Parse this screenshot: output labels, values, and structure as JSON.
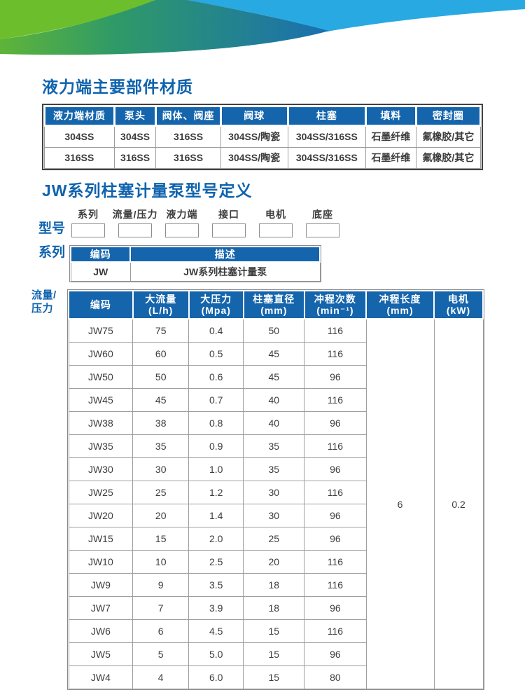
{
  "banner": {
    "green": "#6cbe2d",
    "gradient_start": "#5fb438",
    "gradient_mid": "#2f9a67",
    "gradient_end": "#1a6fb0",
    "light_blue": "#29a9e1"
  },
  "colors": {
    "accent_blue": "#1565ad",
    "title_blue": "#0f63ae",
    "body_text": "#3c3c3c",
    "grid_border": "#9e9e9e"
  },
  "section1": {
    "title": "液力端主要部件材质"
  },
  "materials_table": {
    "headers": [
      "液力端材质",
      "泵头",
      "阀体、阀座",
      "阀球",
      "柱塞",
      "填料",
      "密封圈"
    ],
    "rows": [
      [
        "304SS",
        "304SS",
        "316SS",
        "304SS/陶瓷",
        "304SS/316SS",
        "石墨纤维",
        "氟橡胶/其它"
      ],
      [
        "316SS",
        "316SS",
        "316SS",
        "304SS/陶瓷",
        "304SS/316SS",
        "石墨纤维",
        "氟橡胶/其它"
      ]
    ]
  },
  "section2": {
    "title": "JW系列柱塞计量泵型号定义"
  },
  "model_def": {
    "row_label": "型号",
    "fields": [
      "系列",
      "流量/压力",
      "液力端",
      "接口",
      "电机",
      "底座"
    ]
  },
  "series_table": {
    "row_label": "系列",
    "headers": [
      "编码",
      "描述"
    ],
    "rows": [
      [
        "JW",
        "JW系列柱塞计量泵"
      ]
    ]
  },
  "spec_table": {
    "row_label": "流量/压力",
    "headers": [
      {
        "label": "编码",
        "unit": ""
      },
      {
        "label": "大流量",
        "unit": "(L/h)"
      },
      {
        "label": "大压力",
        "unit": "(Mpa)"
      },
      {
        "label": "柱塞直径",
        "unit": "(mm)"
      },
      {
        "label": "冲程次数",
        "unit": "(min⁻¹)"
      },
      {
        "label": "冲程长度",
        "unit": "(mm)"
      },
      {
        "label": "电机",
        "unit": "(kW)"
      }
    ],
    "rows": [
      [
        "JW75",
        "75",
        "0.4",
        "50",
        "116"
      ],
      [
        "JW60",
        "60",
        "0.5",
        "45",
        "116"
      ],
      [
        "JW50",
        "50",
        "0.6",
        "45",
        "96"
      ],
      [
        "JW45",
        "45",
        "0.7",
        "40",
        "116"
      ],
      [
        "JW38",
        "38",
        "0.8",
        "40",
        "96"
      ],
      [
        "JW35",
        "35",
        "0.9",
        "35",
        "116"
      ],
      [
        "JW30",
        "30",
        "1.0",
        "35",
        "96"
      ],
      [
        "JW25",
        "25",
        "1.2",
        "30",
        "116"
      ],
      [
        "JW20",
        "20",
        "1.4",
        "30",
        "96"
      ],
      [
        "JW15",
        "15",
        "2.0",
        "25",
        "96"
      ],
      [
        "JW10",
        "10",
        "2.5",
        "20",
        "116"
      ],
      [
        "JW9",
        "9",
        "3.5",
        "18",
        "116"
      ],
      [
        "JW7",
        "7",
        "3.9",
        "18",
        "96"
      ],
      [
        "JW6",
        "6",
        "4.5",
        "15",
        "116"
      ],
      [
        "JW5",
        "5",
        "5.0",
        "15",
        "96"
      ],
      [
        "JW4",
        "4",
        "6.0",
        "15",
        "80"
      ]
    ],
    "merged": {
      "stroke_length": "6",
      "motor": "0.2"
    }
  }
}
